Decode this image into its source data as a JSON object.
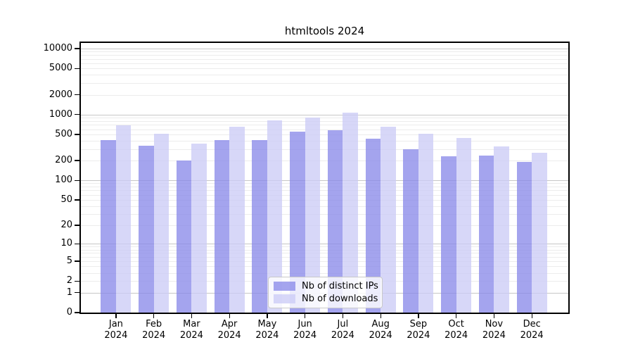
{
  "chart_data": {
    "type": "bar",
    "title": "htmltools 2024",
    "scale": "log10(x+1)",
    "grid": true,
    "categories": [
      "Jan 2024",
      "Feb 2024",
      "Mar 2024",
      "Apr 2024",
      "May 2024",
      "Jun 2024",
      "Jul 2024",
      "Aug 2024",
      "Sep 2024",
      "Oct 2024",
      "Nov 2024",
      "Dec 2024"
    ],
    "series": [
      {
        "name": "Nb of distinct IPs",
        "color": "rgba(136,136,233,0.77)",
        "values": [
          415,
          340,
          200,
          405,
          405,
          545,
          585,
          435,
          300,
          230,
          240,
          190
        ]
      },
      {
        "name": "Nb of downloads",
        "color": "rgba(203,203,246,0.77)",
        "values": [
          690,
          515,
          365,
          650,
          820,
          900,
          1080,
          655,
          515,
          445,
          325,
          265
        ]
      }
    ],
    "y_ticks": [
      10000,
      5000,
      2000,
      1000,
      500,
      200,
      100,
      50,
      20,
      10,
      5,
      2,
      1,
      0
    ],
    "ylim": [
      0,
      12500
    ],
    "legend": {
      "position": "bottom-center"
    }
  },
  "colors": {
    "bar_ips_on_white": "#a3a3ee",
    "bar_downloads_on_white": "#d7d7f8",
    "grid_minor": "#ececec",
    "grid_major": "#c7c7c7",
    "axis": "#000000",
    "legend_border": "#c9c9c9"
  }
}
